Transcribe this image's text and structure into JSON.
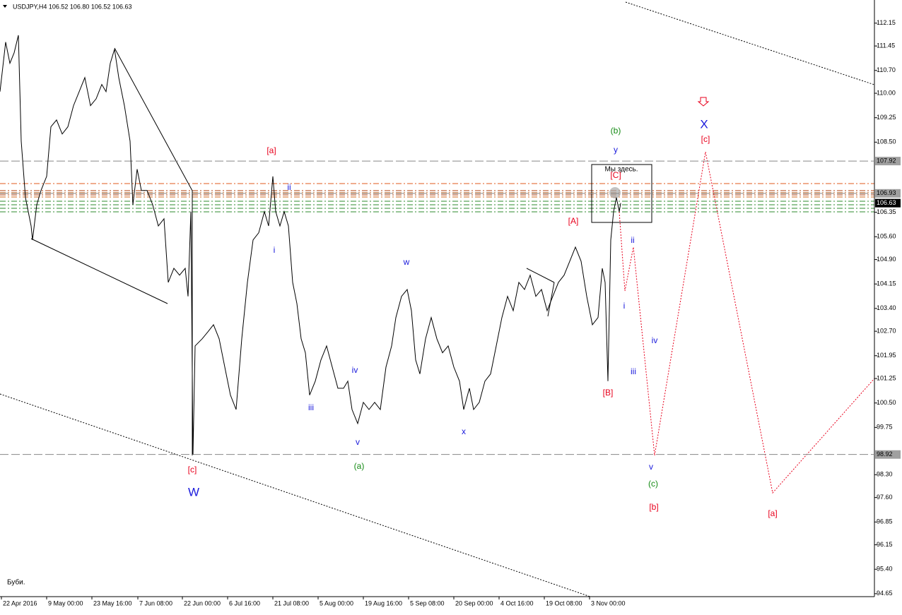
{
  "chart_data": {
    "type": "line",
    "title": "USDJPY,H4  106.52 106.80 106.52 106.63",
    "note": "Буби.",
    "box_label": "Мы здесь.",
    "annotations": [
      "[a]",
      "ii",
      "i",
      "w",
      "iv",
      "iii",
      "v",
      "(a)",
      "x",
      "[c]",
      "W",
      "[A]",
      "[B]",
      "(b)",
      "y",
      "[C]",
      "ii",
      "i",
      "iii",
      "iv",
      "v",
      "(c)",
      "[b]",
      "X",
      "[c]",
      "[a]"
    ],
    "xlim": [
      0,
      618.5
    ],
    "xticks": [
      {
        "value": 1,
        "label": "22 Apr 2016"
      },
      {
        "value": 33,
        "label": "9 May 00:00"
      },
      {
        "value": 65,
        "label": "23 May 16:00"
      },
      {
        "value": 97.5,
        "label": "7 Jun 08:00"
      },
      {
        "value": 129,
        "label": "22 Jun 00:00"
      },
      {
        "value": 161,
        "label": "6 Jul 16:00"
      },
      {
        "value": 193,
        "label": "21 Jul 08:00"
      },
      {
        "value": 225,
        "label": "5 Aug 00:00"
      },
      {
        "value": 257,
        "label": "19 Aug 16:00"
      },
      {
        "value": 289,
        "label": "5 Sep 08:00"
      },
      {
        "value": 321,
        "label": "20 Sep 00:00"
      },
      {
        "value": 353,
        "label": "4 Oct 16:00"
      },
      {
        "value": 385,
        "label": "19 Oct 08:00"
      },
      {
        "value": 417,
        "label": "3 Nov 00:00"
      }
    ],
    "ylim": [
      94.56,
      112.86
    ],
    "yticks": [
      112.15,
      111.45,
      {
        "value": 110.7,
        "label": "110.70"
      },
      {
        "value": 110,
        "label": "110.00"
      },
      109.25,
      {
        "value": 108.5,
        "label": "108.50"
      },
      106.35,
      {
        "value": 105.6,
        "label": "105.60"
      },
      {
        "value": 104.9,
        "label": "104.90"
      },
      104.15,
      {
        "value": 103.4,
        "label": "103.40"
      },
      {
        "value": 102.7,
        "label": "102.70"
      },
      101.95,
      101.25,
      {
        "value": 100.5,
        "label": "100.50"
      },
      99.75,
      {
        "value": 98.3,
        "label": "98.30"
      },
      {
        "value": 97.6,
        "label": "97.60"
      },
      96.85,
      96.15,
      {
        "value": 95.4,
        "label": "95.40"
      },
      94.65
    ],
    "price_levels": [
      107.92,
      106.93,
      98.92
    ],
    "bid": 106.63,
    "series": [
      {
        "name": "USDJPY",
        "color": "#000000",
        "x": [
          0,
          4,
          7,
          10,
          13,
          15,
          18,
          22,
          23,
          26,
          29,
          33,
          36,
          40,
          44,
          48,
          52,
          56,
          60,
          64,
          68,
          72,
          75,
          78,
          81,
          84,
          88,
          92,
          94,
          97,
          100,
          104,
          108,
          112,
          116,
          119,
          123,
          127,
          131,
          133,
          135,
          136.5,
          138,
          143,
          147,
          151,
          155,
          159,
          163,
          167,
          171,
          175,
          179,
          183,
          187,
          190,
          193,
          195,
          198,
          201,
          204,
          207,
          210,
          213,
          216,
          219,
          223,
          227,
          231,
          235,
          239,
          243,
          246,
          249,
          253,
          257,
          261,
          265,
          269,
          273,
          277,
          280,
          284,
          288,
          291,
          294,
          297,
          301,
          305,
          309,
          313,
          317,
          321,
          325,
          328,
          332,
          335,
          339,
          343,
          347,
          351,
          355,
          359,
          363,
          367,
          371,
          375,
          379,
          383,
          387,
          391,
          395,
          399,
          403,
          407,
          411,
          415,
          419,
          423,
          426,
          428,
          430,
          432,
          434,
          436,
          438,
          439
        ],
        "values": [
          110.05,
          111.57,
          110.92,
          111.24,
          111.78,
          108.53,
          106.8,
          105.93,
          105.5,
          106.58,
          107.02,
          107.45,
          108.97,
          109.18,
          108.75,
          108.97,
          109.62,
          110.05,
          110.48,
          109.62,
          109.83,
          110.27,
          110.05,
          110.92,
          111.35,
          110.48,
          109.62,
          108.53,
          106.58,
          107.67,
          107.02,
          107.02,
          106.58,
          105.93,
          106.15,
          104.2,
          104.63,
          104.42,
          104.63,
          103.77,
          106.37,
          98.92,
          102.25,
          102.47,
          102.68,
          102.9,
          102.47,
          101.6,
          100.74,
          100.3,
          102.47,
          104.2,
          105.5,
          105.72,
          106.37,
          105.93,
          107.45,
          106.37,
          105.93,
          106.37,
          105.93,
          104.2,
          103.55,
          102.47,
          102.04,
          100.74,
          101.17,
          101.82,
          102.25,
          101.6,
          100.95,
          100.95,
          101.17,
          100.3,
          99.87,
          100.52,
          100.3,
          100.52,
          100.3,
          101.6,
          102.25,
          103.12,
          103.77,
          103.98,
          103.33,
          101.82,
          101.39,
          102.47,
          103.12,
          102.47,
          102.04,
          102.25,
          101.6,
          101.17,
          100.3,
          100.95,
          100.3,
          100.52,
          101.17,
          101.39,
          102.25,
          103.12,
          103.77,
          103.33,
          104.2,
          103.98,
          104.42,
          103.77,
          103.98,
          103.33,
          103.77,
          104.2,
          104.42,
          104.85,
          105.28,
          104.85,
          103.77,
          102.9,
          103.12,
          104.63,
          104.2,
          101.17,
          105.5,
          106.37,
          106.8,
          106.37,
          106.63
        ]
      }
    ]
  }
}
